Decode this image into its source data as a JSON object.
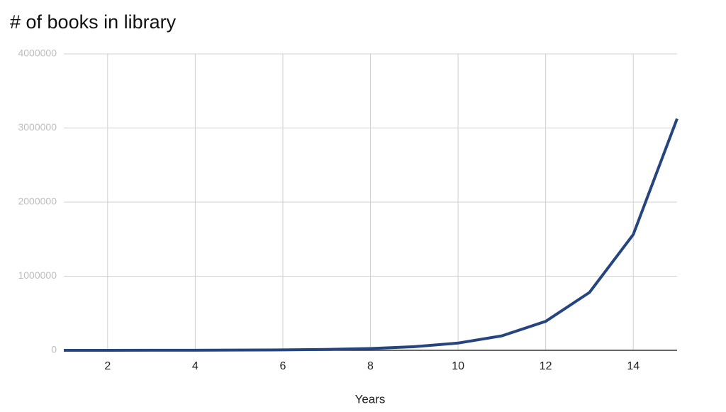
{
  "chart_data": {
    "type": "line",
    "title": "# of books in library",
    "x_label": "Years",
    "x": [
      1,
      2,
      3,
      4,
      5,
      6,
      7,
      8,
      9,
      10,
      11,
      12,
      13,
      14,
      15
    ],
    "series": [
      {
        "name": "Books",
        "color": "#26447f",
        "values": [
          191,
          381,
          763,
          1526,
          3052,
          6104,
          12207,
          24414,
          48828,
          97656,
          195313,
          390625,
          781250,
          1562500,
          3125000
        ]
      }
    ],
    "xlim": [
      1,
      15
    ],
    "xticks": [
      2,
      4,
      6,
      8,
      10,
      12,
      14
    ],
    "ylim": [
      0,
      4000000
    ],
    "yticks": [
      0,
      1000000,
      2000000,
      3000000,
      4000000
    ],
    "grid": true
  }
}
